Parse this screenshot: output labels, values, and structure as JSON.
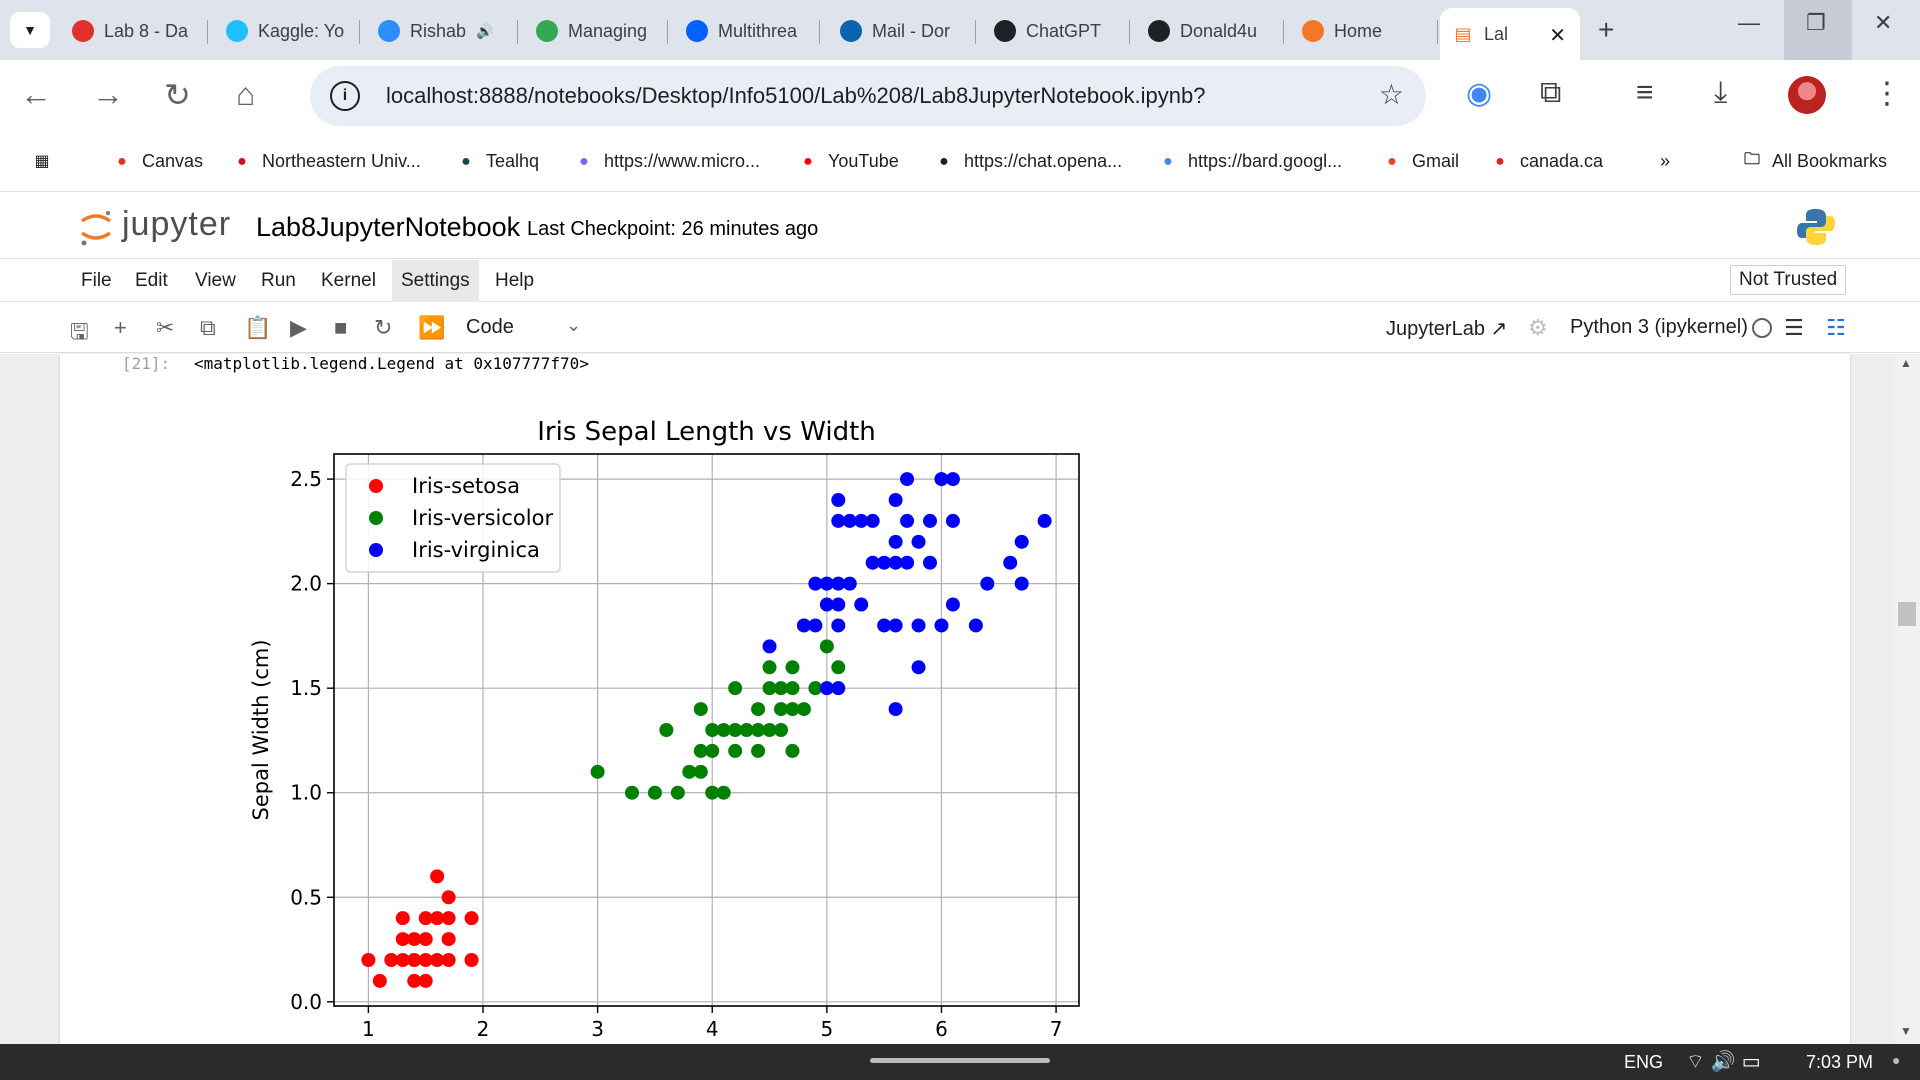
{
  "browser": {
    "tabs": [
      {
        "title": "Lab 8 - Da",
        "icon": "gear-red-icon",
        "color": "#e0312b"
      },
      {
        "title": "Kaggle: Yo",
        "icon": "kaggle-icon",
        "color": "#20beff"
      },
      {
        "title": "Rishab",
        "icon": "zoom-icon",
        "color": "#2d8cff",
        "extra": "🔊"
      },
      {
        "title": "Managing",
        "icon": "spinner-icon",
        "color": "#34a853"
      },
      {
        "title": "Multithrea",
        "icon": "dropbox-icon",
        "color": "#0061fe"
      },
      {
        "title": "Mail - Dor",
        "icon": "outlook-icon",
        "color": "#0a64ad"
      },
      {
        "title": "ChatGPT",
        "icon": "openai-icon",
        "color": "#202124"
      },
      {
        "title": "Donald4u",
        "icon": "github-icon",
        "color": "#202124"
      },
      {
        "title": "Home",
        "icon": "jupyter-icon",
        "color": "#f37726"
      }
    ],
    "active_tab": {
      "title": "Lal",
      "icon": "jupyter-notebook-icon",
      "color": "#f37726"
    },
    "url": "localhost:8888/notebooks/Desktop/Info5100/Lab%208/Lab8JupyterNotebook.ipynb?",
    "bookmarks": [
      {
        "label": "Canvas",
        "icon": "canvas-icon",
        "color": "#e0312b"
      },
      {
        "label": "Northeastern Univ...",
        "icon": "northeastern-icon",
        "color": "#c8102e"
      },
      {
        "label": "Tealhq",
        "icon": "tealhq-icon",
        "color": "#0f4c4c"
      },
      {
        "label": "https://www.micro...",
        "icon": "copilot-icon",
        "color": "#7b61ff"
      },
      {
        "label": "YouTube",
        "icon": "youtube-icon",
        "color": "#ff0000"
      },
      {
        "label": "https://chat.opena...",
        "icon": "openai-icon",
        "color": "#202124"
      },
      {
        "label": "https://bard.googl...",
        "icon": "bard-icon",
        "color": "#4285f4"
      },
      {
        "label": "Gmail",
        "icon": "gmail-icon",
        "color": "#ea4335"
      },
      {
        "label": "canada.ca",
        "icon": "maple-leaf-icon",
        "color": "#d52b1e"
      }
    ],
    "bookmarks_overflow": "»",
    "all_bookmarks": "All Bookmarks"
  },
  "jupyter": {
    "wordmark": "jupyter",
    "notebook_name": "Lab8JupyterNotebook",
    "checkpoint": "Last Checkpoint: 26 minutes ago",
    "menus": [
      "File",
      "Edit",
      "View",
      "Run",
      "Kernel",
      "Settings",
      "Help"
    ],
    "trust": "Not Trusted",
    "cell_type": "Code",
    "jupyterlab_link": "JupyterLab",
    "kernel": "Python 3 (ipykernel)",
    "output_prompt": "[21]:",
    "output_text": "<matplotlib.legend.Legend at 0x107777f70>"
  },
  "taskbar": {
    "lang": "ENG",
    "time": "7:03 PM"
  },
  "chart_data": {
    "type": "scatter",
    "title": "Iris Sepal Length vs Width",
    "xlabel": "Sepal Length (cm)",
    "ylabel": "Sepal Width (cm)",
    "xlim": [
      0.7,
      7.2
    ],
    "ylim": [
      -0.02,
      2.62
    ],
    "xticks": [
      1,
      2,
      3,
      4,
      5,
      6,
      7
    ],
    "yticks": [
      0.0,
      0.5,
      1.0,
      1.5,
      2.0,
      2.5
    ],
    "grid": true,
    "legend_position": "top-left",
    "series": [
      {
        "name": "Iris-setosa",
        "color": "#ff0000",
        "points": [
          [
            1.0,
            0.2
          ],
          [
            1.1,
            0.1
          ],
          [
            1.2,
            0.2
          ],
          [
            1.3,
            0.2
          ],
          [
            1.3,
            0.3
          ],
          [
            1.3,
            0.4
          ],
          [
            1.4,
            0.1
          ],
          [
            1.4,
            0.2
          ],
          [
            1.4,
            0.3
          ],
          [
            1.5,
            0.1
          ],
          [
            1.5,
            0.2
          ],
          [
            1.5,
            0.3
          ],
          [
            1.5,
            0.4
          ],
          [
            1.6,
            0.2
          ],
          [
            1.6,
            0.4
          ],
          [
            1.6,
            0.6
          ],
          [
            1.7,
            0.2
          ],
          [
            1.7,
            0.3
          ],
          [
            1.7,
            0.4
          ],
          [
            1.7,
            0.5
          ],
          [
            1.9,
            0.2
          ],
          [
            1.9,
            0.4
          ]
        ]
      },
      {
        "name": "Iris-versicolor",
        "color": "#008000",
        "points": [
          [
            3.0,
            1.1
          ],
          [
            3.3,
            1.0
          ],
          [
            3.5,
            1.0
          ],
          [
            3.6,
            1.3
          ],
          [
            3.7,
            1.0
          ],
          [
            3.8,
            1.1
          ],
          [
            3.9,
            1.1
          ],
          [
            3.9,
            1.2
          ],
          [
            3.9,
            1.4
          ],
          [
            4.0,
            1.0
          ],
          [
            4.0,
            1.2
          ],
          [
            4.0,
            1.3
          ],
          [
            4.1,
            1.0
          ],
          [
            4.1,
            1.3
          ],
          [
            4.2,
            1.2
          ],
          [
            4.2,
            1.3
          ],
          [
            4.2,
            1.5
          ],
          [
            4.3,
            1.3
          ],
          [
            4.4,
            1.2
          ],
          [
            4.4,
            1.3
          ],
          [
            4.4,
            1.4
          ],
          [
            4.5,
            1.3
          ],
          [
            4.5,
            1.5
          ],
          [
            4.5,
            1.6
          ],
          [
            4.6,
            1.3
          ],
          [
            4.6,
            1.4
          ],
          [
            4.6,
            1.5
          ],
          [
            4.7,
            1.2
          ],
          [
            4.7,
            1.4
          ],
          [
            4.7,
            1.5
          ],
          [
            4.7,
            1.6
          ],
          [
            4.8,
            1.4
          ],
          [
            4.8,
            1.8
          ],
          [
            4.9,
            1.5
          ],
          [
            5.0,
            1.7
          ],
          [
            5.1,
            1.6
          ]
        ]
      },
      {
        "name": "Iris-virginica",
        "color": "#0000ff",
        "points": [
          [
            4.5,
            1.7
          ],
          [
            4.8,
            1.8
          ],
          [
            4.9,
            1.8
          ],
          [
            4.9,
            2.0
          ],
          [
            5.0,
            1.5
          ],
          [
            5.0,
            2.0
          ],
          [
            5.0,
            1.9
          ],
          [
            5.1,
            1.5
          ],
          [
            5.1,
            1.8
          ],
          [
            5.1,
            1.9
          ],
          [
            5.1,
            2.0
          ],
          [
            5.1,
            2.3
          ],
          [
            5.1,
            2.4
          ],
          [
            5.2,
            2.0
          ],
          [
            5.2,
            2.3
          ],
          [
            5.3,
            1.9
          ],
          [
            5.3,
            2.3
          ],
          [
            5.4,
            2.1
          ],
          [
            5.4,
            2.3
          ],
          [
            5.5,
            1.8
          ],
          [
            5.5,
            2.1
          ],
          [
            5.6,
            1.4
          ],
          [
            5.6,
            1.8
          ],
          [
            5.6,
            2.1
          ],
          [
            5.6,
            2.2
          ],
          [
            5.6,
            2.4
          ],
          [
            5.7,
            2.1
          ],
          [
            5.7,
            2.3
          ],
          [
            5.7,
            2.5
          ],
          [
            5.8,
            1.6
          ],
          [
            5.8,
            1.8
          ],
          [
            5.8,
            2.2
          ],
          [
            5.9,
            2.1
          ],
          [
            5.9,
            2.3
          ],
          [
            6.0,
            1.8
          ],
          [
            6.0,
            2.5
          ],
          [
            6.1,
            1.9
          ],
          [
            6.1,
            2.3
          ],
          [
            6.1,
            2.5
          ],
          [
            6.3,
            1.8
          ],
          [
            6.4,
            2.0
          ],
          [
            6.6,
            2.1
          ],
          [
            6.7,
            2.0
          ],
          [
            6.7,
            2.2
          ],
          [
            6.9,
            2.3
          ]
        ]
      }
    ]
  }
}
